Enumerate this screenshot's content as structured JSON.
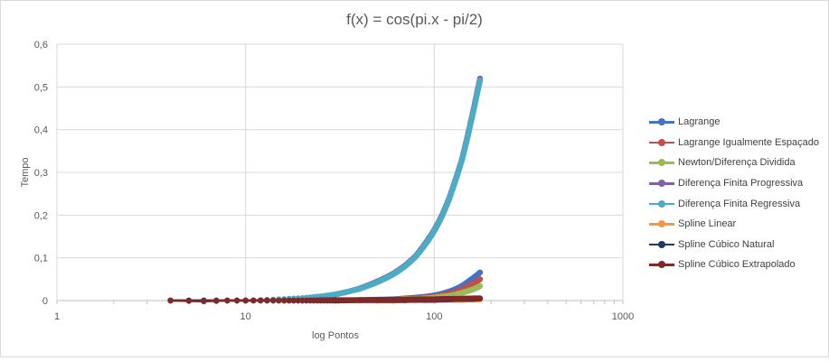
{
  "chart_data": {
    "type": "scatter",
    "title": "f(x) = cos(pi.x - pi/2)",
    "xlabel": "log Pontos",
    "ylabel": "Tempo",
    "x_scale": "log",
    "xlim": [
      1,
      1000
    ],
    "ylim": [
      0,
      0.6
    ],
    "x_ticks": [
      "1",
      "10",
      "100",
      "1000"
    ],
    "y_ticks": [
      "0",
      "0,1",
      "0,2",
      "0,3",
      "0,4",
      "0,5",
      "0,6"
    ],
    "grid": true,
    "legend_position": "right",
    "series": [
      {
        "name": "Lagrange",
        "color": "#4472c4",
        "x": [
          4,
          6,
          8,
          10,
          15,
          20,
          30,
          40,
          50,
          60,
          70,
          80,
          90,
          100,
          110,
          120,
          130,
          140,
          150,
          160,
          170,
          175
        ],
        "y": [
          0,
          0,
          0,
          0,
          0,
          0,
          0,
          0.001,
          0.002,
          0.003,
          0.005,
          0.007,
          0.009,
          0.012,
          0.016,
          0.021,
          0.027,
          0.034,
          0.043,
          0.052,
          0.061,
          0.066
        ]
      },
      {
        "name": "Lagrange Igualmente Espaçado",
        "color": "#c0504d",
        "x": [
          4,
          6,
          8,
          10,
          15,
          20,
          30,
          40,
          50,
          60,
          70,
          80,
          90,
          100,
          110,
          120,
          130,
          140,
          150,
          160,
          170,
          175
        ],
        "y": [
          0,
          0,
          0,
          0,
          0,
          0,
          0,
          0.001,
          0.001,
          0.002,
          0.004,
          0.005,
          0.007,
          0.009,
          0.012,
          0.016,
          0.02,
          0.026,
          0.032,
          0.039,
          0.046,
          0.05
        ]
      },
      {
        "name": "Newton/Diferença Dividida",
        "color": "#9bbb59",
        "x": [
          4,
          6,
          8,
          10,
          15,
          20,
          30,
          40,
          50,
          60,
          70,
          80,
          90,
          100,
          110,
          120,
          130,
          140,
          150,
          160,
          170,
          175
        ],
        "y": [
          0,
          0,
          0,
          0,
          0,
          0,
          0,
          0.001,
          0.001,
          0.002,
          0.003,
          0.004,
          0.005,
          0.007,
          0.009,
          0.011,
          0.014,
          0.018,
          0.022,
          0.026,
          0.031,
          0.034
        ]
      },
      {
        "name": "Diferença Finita Progressiva",
        "color": "#8064a2",
        "x": [
          4,
          6,
          8,
          10,
          15,
          20,
          25,
          30,
          40,
          50,
          60,
          70,
          80,
          90,
          100,
          110,
          120,
          130,
          140,
          150,
          160,
          170,
          175
        ],
        "y": [
          0,
          0,
          0,
          0,
          0.002,
          0.005,
          0.009,
          0.014,
          0.028,
          0.045,
          0.062,
          0.082,
          0.105,
          0.135,
          0.165,
          0.2,
          0.24,
          0.285,
          0.33,
          0.385,
          0.44,
          0.495,
          0.52
        ]
      },
      {
        "name": "Diferença Finita Regressiva",
        "color": "#4bacc6",
        "x": [
          4,
          6,
          8,
          10,
          15,
          20,
          25,
          30,
          40,
          50,
          60,
          70,
          80,
          90,
          100,
          110,
          120,
          130,
          140,
          150,
          160,
          170,
          175
        ],
        "y": [
          0,
          0,
          0,
          0,
          0.003,
          0.006,
          0.01,
          0.015,
          0.027,
          0.043,
          0.06,
          0.08,
          0.103,
          0.132,
          0.162,
          0.197,
          0.237,
          0.282,
          0.327,
          0.38,
          0.435,
          0.49,
          0.515
        ]
      },
      {
        "name": "Spline Linear",
        "color": "#f79646",
        "x": [
          4,
          6,
          8,
          10,
          15,
          20,
          30,
          40,
          50,
          60,
          70,
          80,
          90,
          100,
          120,
          140,
          160,
          175
        ],
        "y": [
          0,
          0,
          0,
          0,
          0,
          0,
          0,
          0,
          0,
          0,
          0.001,
          0.001,
          0.001,
          0.001,
          0.002,
          0.002,
          0.003,
          0.003
        ]
      },
      {
        "name": "Spline Cúbico Natural",
        "color": "#1f3864",
        "x": [
          4,
          6,
          8,
          10,
          15,
          20,
          30,
          40,
          50,
          60,
          70,
          80,
          90,
          100,
          120,
          140,
          160,
          175
        ],
        "y": [
          0,
          0,
          0,
          0,
          0,
          0,
          0,
          0.001,
          0.001,
          0.001,
          0.001,
          0.002,
          0.002,
          0.002,
          0.003,
          0.004,
          0.004,
          0.005
        ]
      },
      {
        "name": "Spline Cúbico Extrapolado",
        "color": "#7f2a2a",
        "x": [
          4,
          6,
          8,
          10,
          12,
          15,
          20,
          25,
          30,
          40,
          50,
          60,
          70,
          80,
          90,
          100,
          120,
          140,
          160,
          175
        ],
        "y": [
          0,
          -0.002,
          0,
          0,
          0,
          0,
          0,
          0.001,
          0.001,
          0.001,
          0.002,
          0.002,
          0.002,
          0.003,
          0.003,
          0.003,
          0.004,
          0.004,
          0.005,
          0.005
        ]
      }
    ]
  }
}
